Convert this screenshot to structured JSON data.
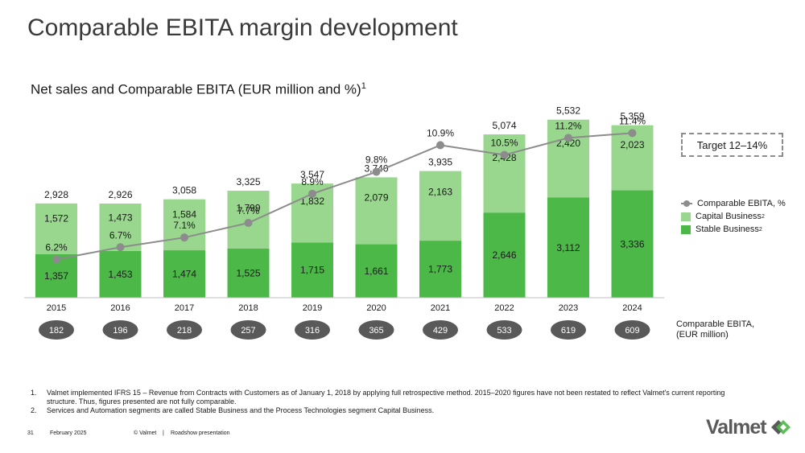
{
  "header": {
    "title": "Comparable EBITA margin development",
    "subtitle": "Net sales and Comparable EBITA (EUR million and %)",
    "subtitle_sup": "1"
  },
  "target_box": "Target 12–14%",
  "legend": {
    "items": [
      {
        "label": "Comparable EBITA, %",
        "sup": ""
      },
      {
        "label": "Capital Business",
        "sup": "2"
      },
      {
        "label": "Stable Business",
        "sup": "2"
      }
    ]
  },
  "ebita_label": [
    "Comparable EBITA,",
    "(EUR million)"
  ],
  "colors": {
    "stable": "#4cb848",
    "capital": "#99d68e",
    "line": "#8c8c8c",
    "pill": "#595959"
  },
  "chart_data": {
    "type": "bar",
    "stacked": true,
    "categories": [
      "2015",
      "2016",
      "2017",
      "2018",
      "2019",
      "2020",
      "2021",
      "2022",
      "2023",
      "2024"
    ],
    "series": [
      {
        "name": "Stable Business",
        "values": [
          1357,
          1453,
          1474,
          1525,
          1715,
          1661,
          1773,
          2646,
          3112,
          3336
        ]
      },
      {
        "name": "Capital Business",
        "values": [
          1572,
          1473,
          1584,
          1799,
          1832,
          2079,
          2163,
          2428,
          2420,
          2023
        ]
      }
    ],
    "totals": [
      2928,
      2926,
      3058,
      3325,
      3547,
      3740,
      3935,
      5074,
      5532,
      5359
    ],
    "total_labels": [
      "2,928",
      "2,926",
      "3,058",
      "3,325",
      "3,547",
      "3,740",
      "3,935",
      "5,074",
      "5,532",
      "5,359"
    ],
    "stable_labels": [
      "1,357",
      "1,453",
      "1,474",
      "1,525",
      "1,715",
      "1,661",
      "1,773",
      "2,646",
      "3,112",
      "3,336"
    ],
    "capital_labels": [
      "1,572",
      "1,473",
      "1,584",
      "1,799",
      "1,832",
      "2,079",
      "2,163",
      "2,428",
      "2,420",
      "2,023"
    ],
    "line": {
      "name": "Comparable EBITA, %",
      "values": [
        6.2,
        6.7,
        7.1,
        7.7,
        8.9,
        9.8,
        10.9,
        10.5,
        11.2,
        11.4
      ],
      "labels": [
        "6.2%",
        "6.7%",
        "7.1%",
        "7.7%",
        "8.9%",
        "9.8%",
        "10.9%",
        "10.5%",
        "11.2%",
        "11.4%"
      ]
    },
    "ebita_eur_million": [
      "182",
      "196",
      "218",
      "257",
      "316",
      "365",
      "429",
      "533",
      "619",
      "609"
    ]
  },
  "footnotes": [
    {
      "num": "1.",
      "text": "Valmet implemented IFRS 15 – Revenue from Contracts with Customers as of January 1, 2018 by applying full retrospective method. 2015–2020 figures have not been restated to reflect Valmet's current reporting structure. Thus, figures presented are not fully comparable."
    },
    {
      "num": "2.",
      "text": "Services and Automation segments are called Stable Business and the Process Technologies segment Capital Business."
    }
  ],
  "footer": {
    "page": "31",
    "date": "February 2025",
    "copyright": "© Valmet",
    "separator": "|",
    "doc": "Roadshow presentation"
  },
  "logo": "Valmet"
}
